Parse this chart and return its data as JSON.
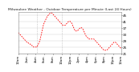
{
  "title": "Milwaukee Weather - Outdoor Temperature per Minute (Last 24 Hours)",
  "line_color": "#ff0000",
  "bg_color": "#ffffff",
  "grid_color": "#cccccc",
  "ylim": [
    21,
    47
  ],
  "yticks": [
    21,
    25,
    29,
    33,
    37,
    41,
    45
  ],
  "vlines_x": [
    26,
    60
  ],
  "x_values": [
    0,
    1,
    2,
    3,
    4,
    5,
    6,
    7,
    8,
    9,
    10,
    11,
    12,
    13,
    14,
    15,
    16,
    17,
    18,
    19,
    20,
    21,
    22,
    23,
    24,
    25,
    26,
    27,
    28,
    29,
    30,
    31,
    32,
    33,
    34,
    35,
    36,
    37,
    38,
    39,
    40,
    41,
    42,
    43,
    44,
    45,
    46,
    47,
    48,
    49,
    50,
    51,
    52,
    53,
    54,
    55,
    56,
    57,
    58,
    59,
    60,
    61,
    62,
    63,
    64,
    65,
    66,
    67,
    68,
    69,
    70,
    71,
    72,
    73,
    74,
    75,
    76,
    77,
    78,
    79,
    80,
    81,
    82,
    83,
    84,
    85,
    86,
    87,
    88,
    89,
    90,
    91,
    92,
    93,
    94,
    95,
    96,
    97,
    98,
    99,
    100,
    101,
    102,
    103,
    104,
    105,
    106,
    107,
    108,
    109,
    110,
    111,
    112,
    113,
    114,
    115,
    116,
    117,
    118,
    119,
    120,
    121,
    122,
    123,
    124,
    125,
    126,
    127,
    128,
    129,
    130,
    131,
    132,
    133,
    134,
    135,
    136,
    137,
    138,
    139,
    140,
    141,
    142,
    143
  ],
  "y_values": [
    34,
    33.5,
    33,
    32.5,
    32,
    31.5,
    31,
    30.5,
    30,
    29.5,
    29,
    28.5,
    28,
    28,
    27.5,
    27,
    27,
    26.5,
    26,
    26,
    25.5,
    25,
    25,
    25,
    25,
    25,
    25,
    26,
    27,
    28,
    29,
    31,
    33,
    35,
    37,
    39,
    40,
    41,
    42,
    43,
    44,
    44.5,
    45,
    45.5,
    46,
    46.2,
    46.3,
    46,
    45.5,
    45,
    44.5,
    44,
    43.5,
    43,
    42.5,
    42,
    41.5,
    41,
    40.5,
    40,
    39.5,
    39,
    38.5,
    38.5,
    38.5,
    38.5,
    39,
    39.5,
    40,
    40.5,
    41,
    41,
    41,
    40.5,
    40,
    39,
    38,
    37,
    36,
    35,
    35,
    35,
    35,
    35.5,
    36,
    36.5,
    37,
    37,
    37,
    36.5,
    36,
    35,
    34,
    33,
    32,
    31.5,
    31,
    30.5,
    30,
    30,
    30,
    30,
    30,
    30,
    30,
    30,
    29.5,
    29,
    28.5,
    28,
    27.5,
    27,
    26.5,
    26,
    25.5,
    25,
    24.5,
    24,
    23.5,
    23,
    23,
    23,
    23,
    23,
    23.5,
    24,
    24.5,
    25,
    25.5,
    26,
    26.5,
    27,
    27.5,
    28,
    28,
    28,
    27.5,
    27,
    26.5,
    26,
    25.5,
    25,
    24.5,
    24
  ],
  "xtick_labels": [
    "12am",
    "2am",
    "4am",
    "6am",
    "8am",
    "10am",
    "12pm",
    "2pm",
    "4pm",
    "6pm",
    "8pm",
    "10pm",
    "12am"
  ],
  "xtick_positions": [
    0,
    12,
    24,
    36,
    48,
    60,
    72,
    84,
    96,
    108,
    120,
    132,
    143
  ]
}
